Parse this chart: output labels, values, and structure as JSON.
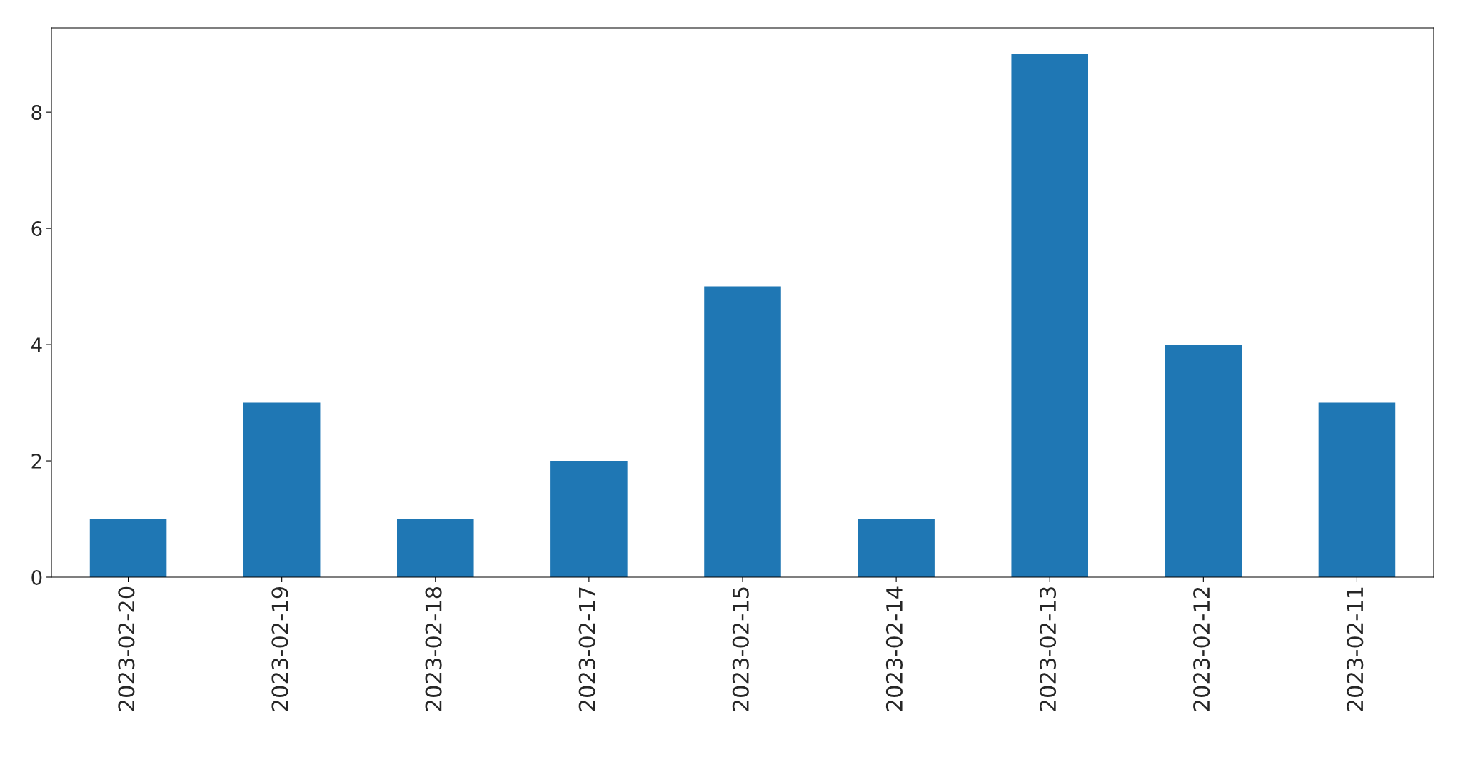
{
  "chart_data": {
    "type": "bar",
    "categories": [
      "2023-02-20",
      "2023-02-19",
      "2023-02-18",
      "2023-02-17",
      "2023-02-15",
      "2023-02-14",
      "2023-02-13",
      "2023-02-12",
      "2023-02-11"
    ],
    "values": [
      1,
      3,
      1,
      2,
      5,
      1,
      9,
      4,
      3
    ],
    "color": "#1f77b4",
    "ylim": [
      0,
      9.45
    ],
    "yticks": [
      0,
      2,
      4,
      6,
      8
    ],
    "grid": false
  }
}
